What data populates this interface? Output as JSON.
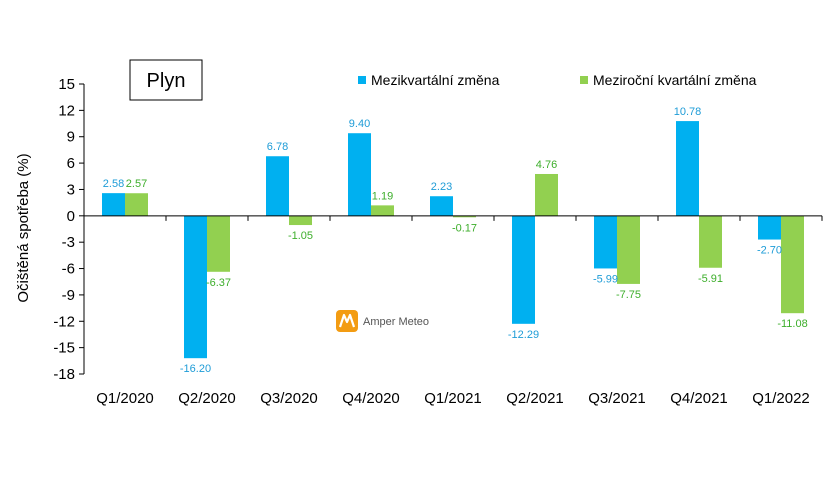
{
  "chart_data": {
    "type": "bar",
    "title": "Plyn",
    "ylabel": "Očištěná spotřeba (%)",
    "xlabel": "",
    "ylim": [
      -18,
      15
    ],
    "yticks": [
      15,
      12,
      9,
      6,
      3,
      0,
      -3,
      -6,
      -9,
      -12,
      -15,
      -18
    ],
    "categories": [
      "Q1/2020",
      "Q2/2020",
      "Q3/2020",
      "Q4/2020",
      "Q1/2021",
      "Q2/2021",
      "Q3/2021",
      "Q4/2021",
      "Q1/2022"
    ],
    "series": [
      {
        "name": "Mezikvartální změna",
        "color": "#00B0F0",
        "label_color": "#1E9CD7",
        "values": [
          2.58,
          -16.2,
          6.78,
          9.4,
          2.23,
          -12.29,
          -5.99,
          10.78,
          -2.7
        ],
        "labels": [
          "2.58",
          "-16.20",
          "6.78",
          "9.40",
          "2.23",
          "-12.29",
          "-5.99",
          "10.78",
          "-2.70"
        ]
      },
      {
        "name": "Meziroční kvartální změna",
        "color": "#92D050",
        "label_color": "#3DAE2B",
        "values": [
          2.57,
          -6.37,
          -1.05,
          1.19,
          -0.17,
          4.76,
          -7.75,
          -5.91,
          -11.08
        ],
        "labels": [
          "2.57",
          "-6.37",
          "-1.05",
          "1.19",
          "-0.17",
          "4.76",
          "-7.75",
          "-5.91",
          "-11.08"
        ]
      }
    ],
    "legend_position": "top-right",
    "grid": false
  },
  "watermark": {
    "text": "Amper Meteo",
    "logo_color": "#F39C12",
    "icon": "amper-meteo-logo-icon"
  }
}
